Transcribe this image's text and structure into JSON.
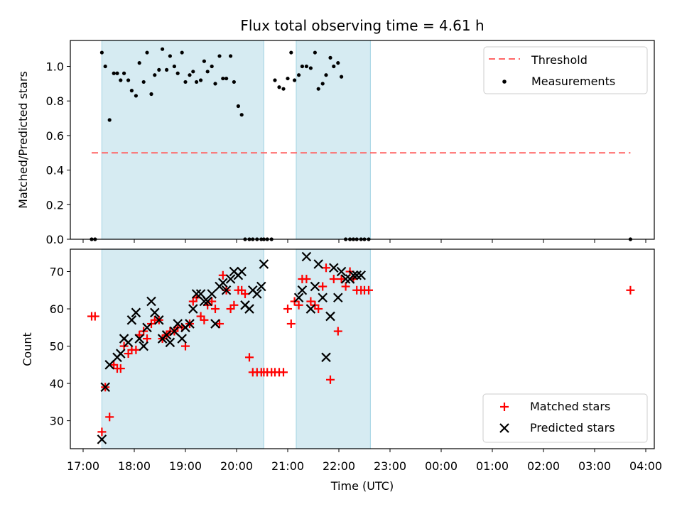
{
  "figure": {
    "title": "Flux total observing time = 4.61 h",
    "xlabel": "Time (UTC)"
  },
  "chart_data": [
    {
      "type": "scatter",
      "title": "Flux total observing time = 4.61 h",
      "ylabel": "Matched/Predicted stars",
      "xlim": [
        "16:45",
        "04:10"
      ],
      "ylim": [
        0,
        1.15
      ],
      "yticks": [
        "0.0",
        "0.2",
        "0.4",
        "0.6",
        "0.8",
        "1.0"
      ],
      "ytick_values": [
        0,
        0.2,
        0.4,
        0.6,
        0.8,
        1.0
      ],
      "grid": false,
      "legend_position": "top-right",
      "shaded_intervals": [
        [
          "17:22",
          "20:32"
        ],
        [
          "21:10",
          "22:37"
        ]
      ],
      "threshold": {
        "name": "Threshold",
        "value": 0.5,
        "x_start": "17:10",
        "x_end": "03:42",
        "color": "#ff6666"
      },
      "series": [
        {
          "name": "Measurements",
          "color": "#000000",
          "marker": "dot",
          "x": [
            "17:10",
            "17:14",
            "17:22",
            "17:26",
            "17:31",
            "17:36",
            "17:40",
            "17:44",
            "17:48",
            "17:53",
            "17:57",
            "18:02",
            "18:06",
            "18:11",
            "18:15",
            "18:20",
            "18:24",
            "18:29",
            "18:33",
            "18:38",
            "18:42",
            "18:47",
            "18:51",
            "18:56",
            "19:00",
            "19:05",
            "19:09",
            "19:13",
            "19:18",
            "19:22",
            "19:26",
            "19:31",
            "19:35",
            "19:40",
            "19:44",
            "19:48",
            "19:53",
            "19:57",
            "20:02",
            "20:06",
            "20:10",
            "20:15",
            "20:19",
            "20:24",
            "20:29",
            "20:32",
            "20:36",
            "20:41",
            "20:45",
            "20:50",
            "20:55",
            "21:00",
            "21:04",
            "21:08",
            "21:13",
            "21:17",
            "21:22",
            "21:27",
            "21:32",
            "21:36",
            "21:41",
            "21:45",
            "21:50",
            "21:54",
            "21:59",
            "22:03",
            "22:08",
            "22:13",
            "22:17",
            "22:21",
            "22:26",
            "22:30",
            "22:35",
            "03:42"
          ],
          "y": [
            0,
            0,
            1.08,
            1.0,
            0.69,
            0.96,
            0.96,
            0.92,
            0.96,
            0.92,
            0.86,
            0.83,
            1.02,
            0.91,
            1.08,
            0.84,
            0.95,
            0.98,
            1.1,
            0.98,
            1.06,
            1.0,
            0.96,
            1.08,
            0.91,
            0.95,
            0.97,
            0.91,
            0.92,
            1.03,
            0.97,
            1.0,
            0.9,
            1.06,
            0.93,
            0.93,
            1.06,
            0.91,
            0.77,
            0.72,
            0,
            0,
            0,
            0,
            0,
            0,
            0,
            0,
            0.92,
            0.88,
            0.87,
            0.93,
            1.08,
            0.92,
            0.95,
            1.0,
            1.0,
            0.99,
            1.08,
            0.87,
            0.9,
            0.95,
            1.05,
            1.0,
            1.02,
            0.94,
            0,
            0,
            0,
            0,
            0,
            0,
            0,
            0
          ]
        }
      ]
    },
    {
      "type": "scatter",
      "ylabel": "Count",
      "xlabel": "Time (UTC)",
      "xlim": [
        "16:45",
        "04:10"
      ],
      "ylim": [
        22.5,
        76
      ],
      "yticks": [
        "30",
        "40",
        "50",
        "60",
        "70"
      ],
      "ytick_values": [
        30,
        40,
        50,
        60,
        70
      ],
      "xticks": [
        "17:00",
        "18:00",
        "19:00",
        "20:00",
        "21:00",
        "22:00",
        "23:00",
        "00:00",
        "01:00",
        "02:00",
        "03:00",
        "04:00"
      ],
      "grid": false,
      "legend_position": "bottom-right",
      "shaded_intervals": [
        [
          "17:22",
          "20:32"
        ],
        [
          "21:10",
          "22:37"
        ]
      ],
      "series": [
        {
          "name": "Matched stars",
          "color": "#ff0000",
          "marker": "plus",
          "x": [
            "17:10",
            "17:14",
            "17:22",
            "17:26",
            "17:31",
            "17:36",
            "17:40",
            "17:44",
            "17:48",
            "17:53",
            "17:57",
            "18:02",
            "18:06",
            "18:11",
            "18:15",
            "18:20",
            "18:24",
            "18:29",
            "18:33",
            "18:38",
            "18:42",
            "18:47",
            "18:51",
            "18:56",
            "19:00",
            "19:05",
            "19:09",
            "19:13",
            "19:18",
            "19:22",
            "19:26",
            "19:31",
            "19:35",
            "19:40",
            "19:44",
            "19:48",
            "19:53",
            "19:57",
            "20:02",
            "20:06",
            "20:10",
            "20:15",
            "20:19",
            "20:24",
            "20:29",
            "20:32",
            "20:36",
            "20:41",
            "20:45",
            "20:50",
            "20:55",
            "21:00",
            "21:04",
            "21:08",
            "21:13",
            "21:17",
            "21:22",
            "21:27",
            "21:32",
            "21:36",
            "21:41",
            "21:45",
            "21:50",
            "21:54",
            "21:59",
            "22:03",
            "22:08",
            "22:13",
            "22:17",
            "22:21",
            "22:26",
            "22:30",
            "22:35",
            "03:42"
          ],
          "y": [
            58,
            58,
            27,
            39,
            31,
            45,
            44,
            44,
            50,
            48,
            49,
            49,
            53,
            54,
            52,
            56,
            57,
            57,
            52,
            53,
            54,
            54,
            55,
            55,
            50,
            56,
            62,
            63,
            58,
            57,
            61,
            62,
            60,
            56,
            69,
            65,
            60,
            61,
            65,
            65,
            64,
            47,
            43,
            43,
            43,
            43,
            43,
            43,
            43,
            43,
            43,
            60,
            56,
            62,
            61,
            68,
            68,
            62,
            61,
            60,
            66,
            71,
            41,
            68,
            54,
            68,
            66,
            70,
            68,
            65,
            65,
            65,
            65,
            65
          ]
        },
        {
          "name": "Predicted stars",
          "color": "#000000",
          "marker": "x",
          "x": [
            "17:22",
            "17:26",
            "17:31",
            "17:40",
            "17:44",
            "17:48",
            "17:53",
            "17:57",
            "18:02",
            "18:06",
            "18:11",
            "18:15",
            "18:20",
            "18:24",
            "18:29",
            "18:33",
            "18:38",
            "18:42",
            "18:47",
            "18:51",
            "18:56",
            "19:00",
            "19:05",
            "19:09",
            "19:13",
            "19:18",
            "19:22",
            "19:26",
            "19:31",
            "19:35",
            "19:40",
            "19:44",
            "19:48",
            "19:53",
            "19:57",
            "20:02",
            "20:06",
            "20:10",
            "20:15",
            "20:19",
            "20:24",
            "20:29",
            "20:32",
            "21:13",
            "21:17",
            "21:22",
            "21:27",
            "21:32",
            "21:36",
            "21:41",
            "21:45",
            "21:50",
            "21:54",
            "21:59",
            "22:03",
            "22:08",
            "22:13",
            "22:17",
            "22:21",
            "22:26"
          ],
          "y": [
            25,
            39,
            45,
            47,
            48,
            52,
            51,
            57,
            59,
            52,
            50,
            55,
            62,
            59,
            57,
            52,
            53,
            51,
            54,
            56,
            52,
            55,
            56,
            60,
            64,
            64,
            62,
            62,
            64,
            56,
            66,
            67,
            65,
            68,
            70,
            69,
            70,
            61,
            60,
            65,
            64,
            66,
            72,
            63,
            65,
            74,
            60,
            66,
            72,
            63,
            47,
            58,
            71,
            63,
            70,
            68,
            68,
            69,
            69,
            69
          ]
        }
      ]
    }
  ]
}
